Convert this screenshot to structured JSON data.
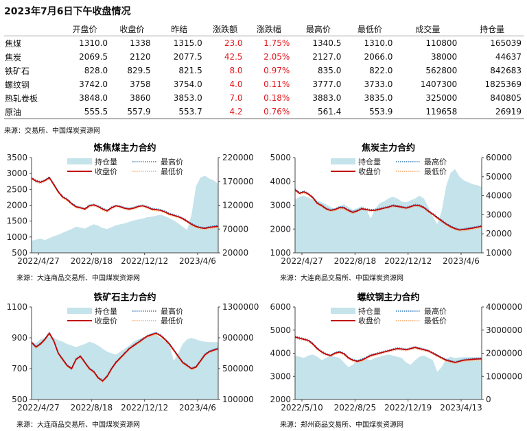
{
  "page": {
    "title": "2023年7月6日下午收盘情况",
    "table_source": "来源：交易所、中国煤炭资源网"
  },
  "table": {
    "columns": [
      "",
      "开盘价",
      "收盘价",
      "昨结",
      "涨跌额",
      "涨跌幅",
      "最高价",
      "最低价",
      "成交量",
      "持仓量"
    ],
    "rows": [
      [
        "焦煤",
        "1310.0",
        "1338",
        "1315.0",
        "23.0",
        "1.75%",
        "1340.5",
        "1310.0",
        "110800",
        "165039"
      ],
      [
        "焦炭",
        "2069.5",
        "2120",
        "2077.5",
        "42.5",
        "2.05%",
        "2127.0",
        "2066.0",
        "38000",
        "44637"
      ],
      [
        "铁矿石",
        "828.0",
        "829.5",
        "821.5",
        "8.0",
        "0.97%",
        "835.0",
        "822.0",
        "562800",
        "842683"
      ],
      [
        "螺纹钢",
        "3742.0",
        "3758",
        "3754.0",
        "4.0",
        "0.11%",
        "3777.0",
        "3733.0",
        "1407300",
        "1825369"
      ],
      [
        "热轧卷板",
        "3848.0",
        "3860",
        "3853.0",
        "7.0",
        "0.18%",
        "3883.0",
        "3835.0",
        "325000",
        "840805"
      ],
      [
        "原油",
        "555.5",
        "557.9",
        "553.7",
        "4.2",
        "0.76%",
        "561.4",
        "553.9",
        "119658",
        "26919"
      ]
    ],
    "up_color": "#e4161c"
  },
  "colors": {
    "oi_fill": "#c5e3ea",
    "close_line": "#c00000",
    "high_line": "#2e75b6",
    "low_line": "#f4a460"
  },
  "chart_data": [
    {
      "type": "line",
      "title": "炼焦煤主力合约",
      "source": "来源：大连商品交易所、中国煤炭资源网",
      "x_ticks": [
        "2022/4/27",
        "2022/8/18",
        "2022/12/12",
        "2023/4/6"
      ],
      "ylim": [
        500,
        3500
      ],
      "y_ticks": [
        500,
        1000,
        1500,
        2000,
        2500,
        3000,
        3500
      ],
      "y2lim": [
        20000,
        220000
      ],
      "y2_ticks": [
        20000,
        70000,
        120000,
        170000,
        220000
      ],
      "legend": [
        "持仓量",
        "最高价",
        "收盘价",
        "最低价"
      ],
      "close": [
        2850,
        2760,
        2720,
        2780,
        2870,
        2650,
        2420,
        2260,
        2180,
        2050,
        1950,
        1920,
        1880,
        1980,
        2010,
        1960,
        1880,
        1820,
        1920,
        1980,
        1950,
        1900,
        1880,
        1910,
        1960,
        1980,
        1940,
        1880,
        1860,
        1840,
        1790,
        1720,
        1680,
        1640,
        1580,
        1490,
        1400,
        1330,
        1290,
        1270,
        1300,
        1320,
        1338
      ],
      "open_interest": [
        45000,
        48000,
        50000,
        47000,
        51000,
        55000,
        58000,
        62000,
        66000,
        70000,
        75000,
        73000,
        71000,
        76000,
        80000,
        77000,
        72000,
        70000,
        74000,
        78000,
        80000,
        82000,
        85000,
        88000,
        90000,
        92000,
        95000,
        96000,
        98000,
        100000,
        97000,
        93000,
        88000,
        82000,
        75000,
        68000,
        100000,
        160000,
        178000,
        182000,
        176000,
        172000,
        165039
      ]
    },
    {
      "type": "line",
      "title": "焦炭主力合约",
      "source": "来源：大连商品交易所、中国煤炭资源网",
      "x_ticks": [
        "2022/4/27",
        "2022/8/18",
        "2022/12/12",
        "2023/4/6"
      ],
      "ylim": [
        1000,
        5000
      ],
      "y_ticks": [
        1000,
        2000,
        3000,
        4000,
        5000
      ],
      "y2lim": [
        10000,
        60000
      ],
      "y2_ticks": [
        10000,
        20000,
        30000,
        40000,
        50000,
        60000
      ],
      "legend": [
        "持仓量",
        "最高价",
        "收盘价",
        "最低价"
      ],
      "close": [
        3650,
        3500,
        3560,
        3470,
        3320,
        3080,
        2980,
        2850,
        2780,
        2820,
        2900,
        2890,
        2780,
        2700,
        2760,
        2850,
        2820,
        2780,
        2790,
        2830,
        2880,
        2920,
        2980,
        2950,
        2920,
        2880,
        2940,
        3000,
        2980,
        2900,
        2750,
        2620,
        2480,
        2340,
        2210,
        2100,
        2020,
        1960,
        1980,
        2010,
        2040,
        2080,
        2120
      ],
      "open_interest": [
        38000,
        39500,
        40000,
        39000,
        38000,
        37500,
        36500,
        35500,
        34000,
        33000,
        34500,
        35500,
        34000,
        32500,
        33500,
        34500,
        33000,
        28000,
        33000,
        36000,
        37000,
        38500,
        39500,
        38500,
        37000,
        36500,
        37500,
        38500,
        40000,
        38500,
        34000,
        29000,
        25000,
        32000,
        45000,
        52000,
        54000,
        50000,
        48000,
        47000,
        46000,
        45500,
        44637
      ]
    },
    {
      "type": "line",
      "title": "铁矿石主力合约",
      "source": "来源：大连商品交易所、中国煤炭资源网",
      "x_ticks": [
        "2022/4/27",
        "2022/8/18",
        "2022/12/12",
        "2023/4/6"
      ],
      "ylim": [
        500,
        1100
      ],
      "y_ticks": [
        500,
        700,
        900,
        1100
      ],
      "y2lim": [
        100000,
        1300000
      ],
      "y2_ticks": [
        100000,
        500000,
        900000,
        1300000
      ],
      "legend": [
        "持仓量",
        "最高价",
        "收盘价",
        "最低价"
      ],
      "close": [
        870,
        840,
        860,
        890,
        930,
        880,
        800,
        760,
        720,
        700,
        760,
        780,
        740,
        700,
        680,
        640,
        620,
        650,
        700,
        740,
        770,
        800,
        830,
        850,
        870,
        890,
        910,
        920,
        930,
        915,
        890,
        860,
        820,
        780,
        740,
        720,
        700,
        710,
        750,
        790,
        810,
        820,
        829.5
      ],
      "open_interest": [
        850000,
        830000,
        880000,
        900000,
        920000,
        900000,
        870000,
        850000,
        820000,
        800000,
        780000,
        800000,
        820000,
        850000,
        830000,
        800000,
        760000,
        720000,
        700000,
        680000,
        720000,
        760000,
        800000,
        850000,
        880000,
        900000,
        920000,
        930000,
        940000,
        900000,
        860000,
        820000,
        600000,
        700000,
        820000,
        880000,
        900000,
        880000,
        860000,
        850000,
        845000,
        843000,
        842683
      ]
    },
    {
      "type": "line",
      "title": "螺纹钢主力合约",
      "source": "来源：郑州商品交易所、中国煤炭资源网",
      "x_ticks": [
        "2022/5/10",
        "2022/8/25",
        "2022/12/19",
        "2023/4/13"
      ],
      "ylim": [
        2000,
        6000
      ],
      "y_ticks": [
        2000,
        3000,
        4000,
        5000,
        6000
      ],
      "y2lim": [
        0,
        4000000
      ],
      "y2_ticks": [
        0,
        1000000,
        2000000,
        3000000,
        4000000
      ],
      "legend": [
        "持仓量",
        "最高价",
        "收盘价",
        "最低价"
      ],
      "close": [
        4700,
        4650,
        4600,
        4550,
        4400,
        4200,
        4050,
        3950,
        3900,
        4000,
        4050,
        3980,
        3800,
        3700,
        3650,
        3700,
        3800,
        3900,
        3950,
        4000,
        4050,
        4100,
        4150,
        4200,
        4180,
        4150,
        4200,
        4250,
        4200,
        4150,
        4100,
        4000,
        3900,
        3800,
        3700,
        3650,
        3600,
        3650,
        3700,
        3720,
        3740,
        3750,
        3758
      ],
      "open_interest": [
        1900000,
        1850000,
        1800000,
        1900000,
        1950000,
        1850000,
        1700000,
        1800000,
        1900000,
        1850000,
        1800000,
        1600000,
        1400000,
        1500000,
        1700000,
        1800000,
        1750000,
        1700000,
        1800000,
        1850000,
        1900000,
        1950000,
        1900000,
        1850000,
        1800000,
        1600000,
        1500000,
        1700000,
        1850000,
        1900000,
        1800000,
        1700000,
        1200000,
        1400000,
        1750000,
        1850000,
        1800000,
        1820000,
        1830000,
        1826000,
        1825000,
        1825500,
        1825369
      ]
    }
  ]
}
